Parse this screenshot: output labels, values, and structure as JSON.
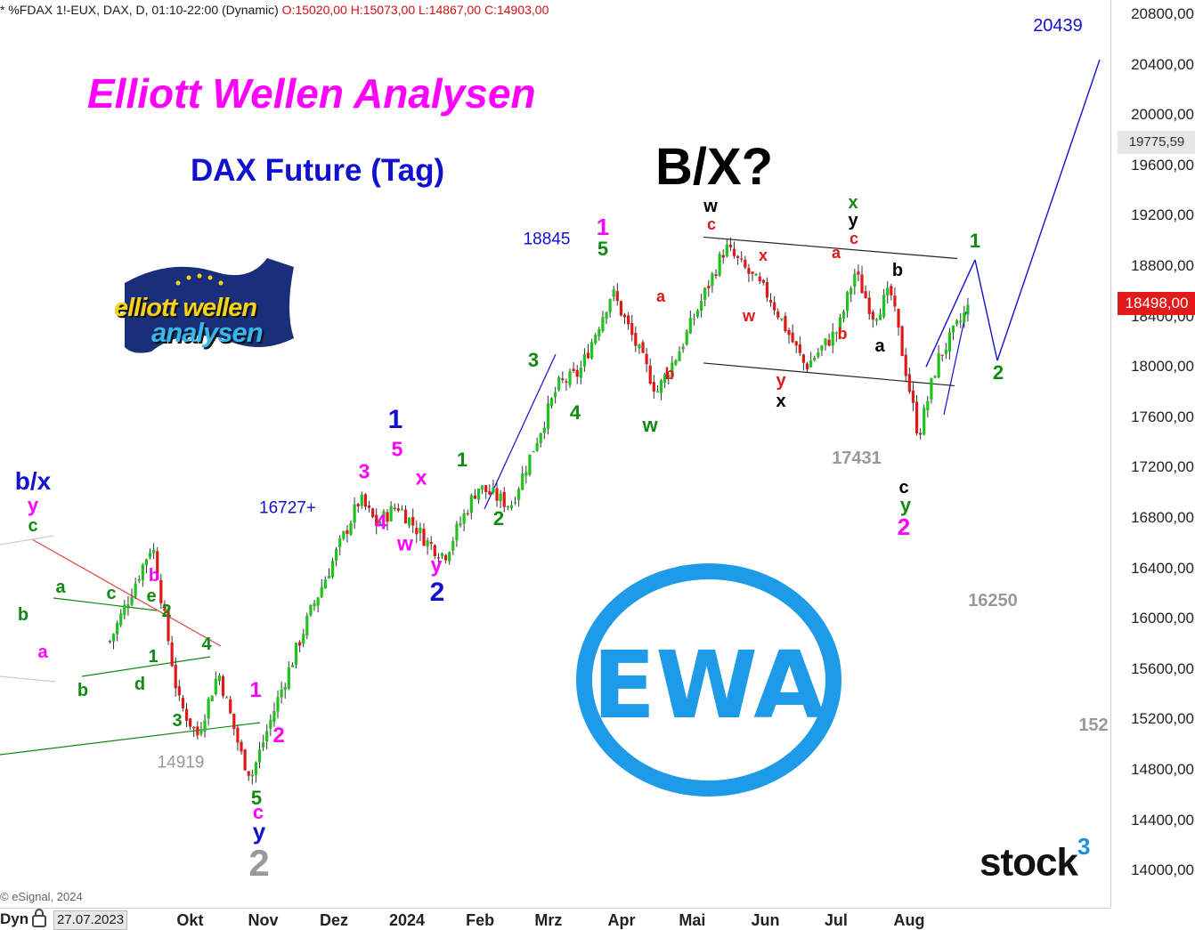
{
  "header": {
    "symbol": "* %FDAX 1!-EUX, DAX, D, 01:10-22:00 (Dynamic)",
    "ohlc": "O:15020,00 H:15073,00 L:14867,00 C:14903,00"
  },
  "title": "Elliott Wellen Analysen",
  "subtitle": "DAX Future (Tag)",
  "scenario_label": "B/X?",
  "logo": {
    "line1": "elliott wellen",
    "line2": "analysen",
    "ewa_text": "EWA"
  },
  "stock3_brand": {
    "text": "stock",
    "superscript": "3"
  },
  "credits": "© eSignal, 2024",
  "bottom_bar": {
    "mode": "Dyn",
    "date": "27.07.2023",
    "lock_icon": "lock-icon"
  },
  "colors": {
    "up_candle": "#1ec31e",
    "down_candle": "#e01818",
    "magenta": "#ff00ff",
    "blue": "#1010d0",
    "green": "#108a10",
    "red": "#e01818",
    "grey": "#999999"
  },
  "price_badges": {
    "last": "18498,00",
    "reference": "19775,59"
  },
  "annotations": {
    "b_x": "b/x",
    "val_18845": "18845",
    "val_16727": "16727+",
    "val_14919": "14919",
    "val_17431": "17431",
    "val_16250": "16250",
    "val_152": "152",
    "val_20439": "20439"
  },
  "wave_labels": [
    {
      "t": "y",
      "c": "magenta"
    },
    {
      "t": "c",
      "c": "green"
    },
    {
      "t": "b",
      "c": "green"
    },
    {
      "t": "a",
      "c": "magenta"
    },
    {
      "t": "a",
      "c": "green"
    },
    {
      "t": "c",
      "c": "green"
    },
    {
      "t": "b",
      "c": "magenta"
    },
    {
      "t": "e",
      "c": "green"
    },
    {
      "t": "2",
      "c": "green"
    },
    {
      "t": "1",
      "c": "green"
    },
    {
      "t": "4",
      "c": "green"
    },
    {
      "t": "b",
      "c": "green"
    },
    {
      "t": "d",
      "c": "green"
    },
    {
      "t": "3",
      "c": "green"
    },
    {
      "t": "1",
      "c": "magenta"
    },
    {
      "t": "2",
      "c": "magenta"
    },
    {
      "t": "5",
      "c": "green"
    },
    {
      "t": "c",
      "c": "magenta"
    },
    {
      "t": "y",
      "c": "blue"
    },
    {
      "t": "2",
      "c": "grey"
    },
    {
      "t": "3",
      "c": "magenta"
    },
    {
      "t": "4",
      "c": "magenta"
    },
    {
      "t": "w",
      "c": "magenta"
    },
    {
      "t": "x",
      "c": "magenta"
    },
    {
      "t": "5",
      "c": "magenta"
    },
    {
      "t": "1",
      "c": "blue"
    },
    {
      "t": "y",
      "c": "magenta"
    },
    {
      "t": "2",
      "c": "blue"
    },
    {
      "t": "1",
      "c": "green"
    },
    {
      "t": "2",
      "c": "green"
    },
    {
      "t": "3",
      "c": "green"
    },
    {
      "t": "4",
      "c": "green"
    },
    {
      "t": "1",
      "c": "magenta"
    },
    {
      "t": "5",
      "c": "green"
    },
    {
      "t": "a",
      "c": "red"
    },
    {
      "t": "b",
      "c": "red"
    },
    {
      "t": "w",
      "c": "green"
    },
    {
      "t": "w",
      "c": "black"
    },
    {
      "t": "c",
      "c": "red"
    },
    {
      "t": "x",
      "c": "red"
    },
    {
      "t": "w",
      "c": "red"
    },
    {
      "t": "y",
      "c": "red"
    },
    {
      "t": "x",
      "c": "black"
    },
    {
      "t": "a",
      "c": "red"
    },
    {
      "t": "b",
      "c": "red"
    },
    {
      "t": "x",
      "c": "green"
    },
    {
      "t": "y",
      "c": "black"
    },
    {
      "t": "c",
      "c": "red"
    },
    {
      "t": "b",
      "c": "black"
    },
    {
      "t": "a",
      "c": "black"
    },
    {
      "t": "c",
      "c": "black"
    },
    {
      "t": "y",
      "c": "green"
    },
    {
      "t": "2",
      "c": "magenta"
    },
    {
      "t": "1",
      "c": "green"
    },
    {
      "t": "2",
      "c": "green"
    }
  ],
  "chart_data": {
    "type": "candlestick",
    "title": "DAX Future (Tag)",
    "instrument": "%FDAX 1!-EUX",
    "timeframe": "D",
    "x_tick_labels": [
      "Okt",
      "Nov",
      "Dez",
      "2024",
      "Feb",
      "Mrz",
      "Apr",
      "Mai",
      "Jun",
      "Jul",
      "Aug"
    ],
    "y_tick_labels": [
      "20800,00",
      "20400,00",
      "20000,00",
      "19600,00",
      "19200,00",
      "18800,00",
      "18400,00",
      "18000,00",
      "17600,00",
      "17200,00",
      "16800,00",
      "16400,00",
      "16000,00",
      "15600,00",
      "15200,00",
      "14800,00",
      "14400,00",
      "14000,00"
    ],
    "ylim": [
      13960,
      21050
    ],
    "last_price": 18498,
    "path_points": [
      {
        "date": "2023-08-28",
        "close": 15820
      },
      {
        "date": "2023-09-15",
        "close": 16600
      },
      {
        "date": "2023-09-26",
        "close": 15350
      },
      {
        "date": "2023-10-04",
        "close": 15070
      },
      {
        "date": "2023-10-13",
        "close": 15580
      },
      {
        "date": "2023-10-23",
        "close": 14900
      },
      {
        "date": "2023-10-27",
        "close": 14750
      },
      {
        "date": "2023-11-08",
        "close": 15400
      },
      {
        "date": "2023-11-21",
        "close": 16050
      },
      {
        "date": "2023-12-12",
        "close": 16950
      },
      {
        "date": "2023-12-19",
        "close": 16750
      },
      {
        "date": "2023-12-28",
        "close": 16900
      },
      {
        "date": "2024-01-10",
        "close": 16600
      },
      {
        "date": "2024-01-17",
        "close": 16500
      },
      {
        "date": "2024-01-31",
        "close": 17050
      },
      {
        "date": "2024-02-14",
        "close": 16900
      },
      {
        "date": "2024-03-05",
        "close": 17850
      },
      {
        "date": "2024-03-14",
        "close": 17950
      },
      {
        "date": "2024-03-28",
        "close": 18600
      },
      {
        "date": "2024-04-16",
        "close": 17800
      },
      {
        "date": "2024-04-26",
        "close": 18150
      },
      {
        "date": "2024-05-15",
        "close": 18950
      },
      {
        "date": "2024-06-03",
        "close": 18550
      },
      {
        "date": "2024-06-18",
        "close": 18000
      },
      {
        "date": "2024-07-02",
        "close": 18300
      },
      {
        "date": "2024-07-09",
        "close": 18750
      },
      {
        "date": "2024-07-17",
        "close": 18400
      },
      {
        "date": "2024-07-24",
        "close": 18600
      },
      {
        "date": "2024-08-05",
        "close": 17450
      },
      {
        "date": "2024-08-13",
        "close": 18050
      },
      {
        "date": "2024-08-27",
        "close": 18498
      }
    ],
    "forecast_path": [
      18000,
      18850,
      18050,
      20439
    ],
    "channel_lines": [
      {
        "name": "upper",
        "from": 19030,
        "to": 18860
      },
      {
        "name": "lower",
        "from": 18030,
        "to": 17850
      }
    ]
  }
}
